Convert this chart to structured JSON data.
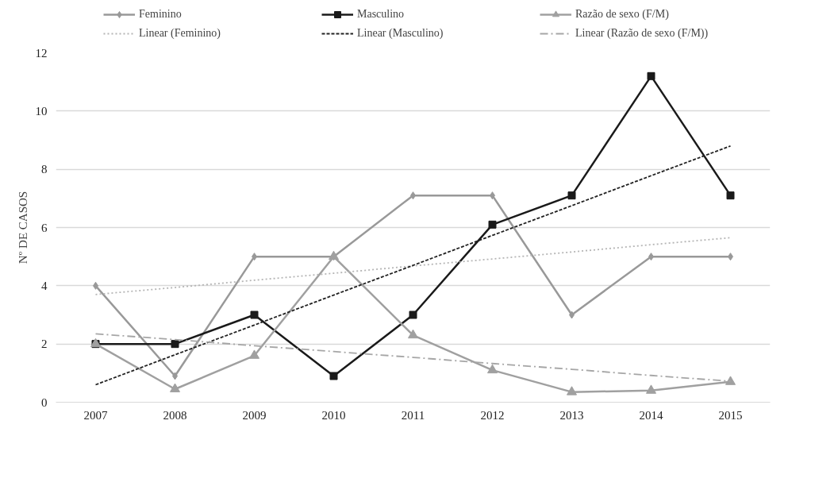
{
  "chart_data": {
    "type": "line",
    "ylabel": "Nº DE CASOS",
    "categories": [
      "2007",
      "2008",
      "2009",
      "2010",
      "2011",
      "2012",
      "2013",
      "2014",
      "2015"
    ],
    "ylim": [
      0,
      12
    ],
    "yticks": [
      0,
      2,
      4,
      6,
      8,
      10,
      12
    ],
    "grid": "y",
    "legend": "top",
    "series": [
      {
        "name": "Feminino",
        "color": "#999999",
        "marker": "diamond",
        "line_style": "solid",
        "values": [
          4,
          0.9,
          5,
          5,
          7.1,
          7.1,
          3,
          5,
          5
        ]
      },
      {
        "name": "Masculino",
        "color": "#1a1a1a",
        "marker": "square",
        "line_style": "solid",
        "values": [
          2,
          2,
          3,
          0.9,
          3,
          6.1,
          7.1,
          11.2,
          7.1
        ]
      },
      {
        "name": "Razão de sexo (F/M)",
        "color": "#a0a0a0",
        "marker": "triangle",
        "line_style": "solid",
        "values": [
          2,
          0.45,
          1.6,
          5,
          2.3,
          1.1,
          0.35,
          0.4,
          0.7
        ]
      },
      {
        "name": "Linear (Feminino)",
        "color": "#b5b5b5",
        "marker": "none",
        "line_style": "dotted",
        "values": [
          3.7,
          3.94,
          4.19,
          4.43,
          4.68,
          4.92,
          5.16,
          5.41,
          5.65
        ]
      },
      {
        "name": "Linear (Masculino)",
        "color": "#222222",
        "marker": "none",
        "line_style": "dashed",
        "values": [
          0.6,
          1.63,
          2.65,
          3.68,
          4.7,
          5.73,
          6.75,
          7.78,
          8.8
        ]
      },
      {
        "name": "Linear (Razão de sexo (F/M))",
        "color": "#a6a6a6",
        "marker": "none",
        "line_style": "dashdot",
        "values": [
          2.35,
          2.15,
          1.94,
          1.74,
          1.54,
          1.33,
          1.13,
          0.92,
          0.72
        ]
      }
    ]
  }
}
